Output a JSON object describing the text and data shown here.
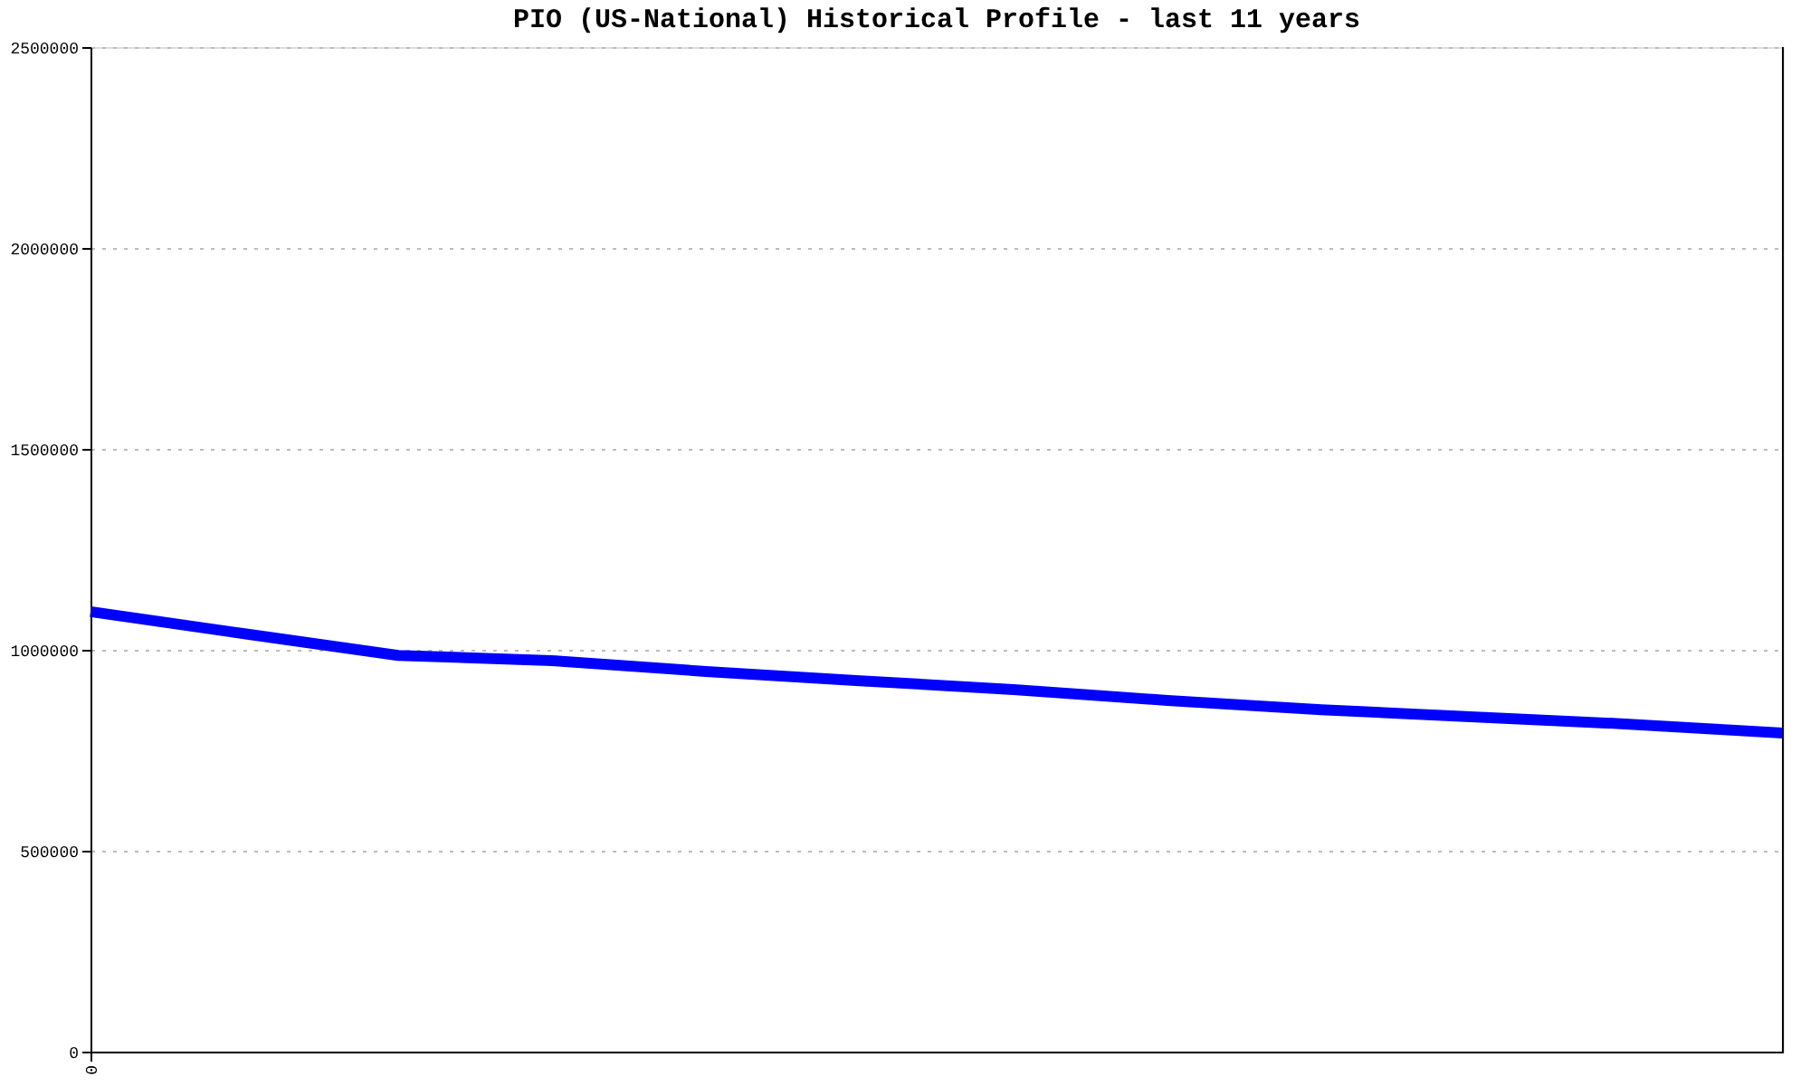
{
  "chart_data": {
    "type": "line",
    "title": "PIO (US-National) Historical Profile - last 11 years",
    "categories": [
      "0",
      null,
      null,
      null,
      null,
      null,
      null,
      null,
      null,
      null,
      null,
      null
    ],
    "series": [
      {
        "color": "#0000ff",
        "values": [
          1095000,
          1040000,
          986000,
          973000,
          946000,
          923000,
          901000,
          874000,
          851000,
          833000,
          815000,
          793000
        ]
      }
    ],
    "ylim": [
      0,
      2500000
    ],
    "yticks": [
      0,
      500000,
      1000000,
      1500000,
      2000000,
      2500000
    ],
    "grid": "y",
    "legend": false,
    "marker": "none",
    "line_style": "solid"
  }
}
